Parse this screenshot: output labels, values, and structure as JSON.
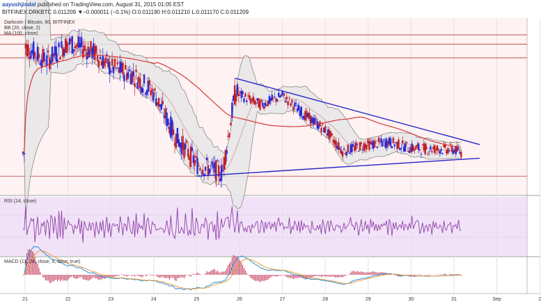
{
  "header": {
    "author": "aayushjindal",
    "published_text": "published on TradingView.com, August 31, 2015 01:05 EST",
    "symbol_line": "BITFINEX:DRKBTC  0.011209  ▼−0.000011 (−0.1%)  O:0.011190  H:0.011210  L:0.011170  C:0.011209"
  },
  "chart_data": {
    "type": "candlestick",
    "title": "Darkcoin / Bitcoin, 60, BITFINEX",
    "indicators": {
      "bollinger": "BB (20, close, 2)",
      "moving_average": "MA (100, close)",
      "rsi": "RSI (14, close)",
      "macd": "MACD (12, 26, close, 9, false, true)"
    },
    "x_tick_labels": [
      "21",
      "22",
      "23",
      "24",
      "25",
      "26",
      "27",
      "28",
      "29",
      "30",
      "31",
      "Sep",
      "2"
    ],
    "colors": {
      "up": "#2b2bd6",
      "down": "#c0202a",
      "trendline": "#2323c8",
      "ma": "#d63a3a",
      "bb": "#8a8a8a",
      "bb_fill": "#e6e6e6",
      "price_panel_bg": "#fff2f2",
      "rsi": "#9040a8",
      "rsi_bg": "#f1e2f8",
      "macd_line": "#2a8fd6",
      "signal_line": "#e89a3a",
      "histogram": "#c03050"
    },
    "trendlines": [
      {
        "name": "upper",
        "from": {
          "day": 25.9,
          "price": 0.01233
        },
        "to": {
          "day": 31.6,
          "price": 0.01126
        }
      },
      {
        "name": "lower",
        "from": {
          "day": 25.0,
          "price": 0.01075
        },
        "to": {
          "day": 31.6,
          "price": 0.01104
        }
      }
    ],
    "horizontal_lines": [
      0.01303,
      0.01288,
      0.01266,
      0.01075
    ]
  }
}
